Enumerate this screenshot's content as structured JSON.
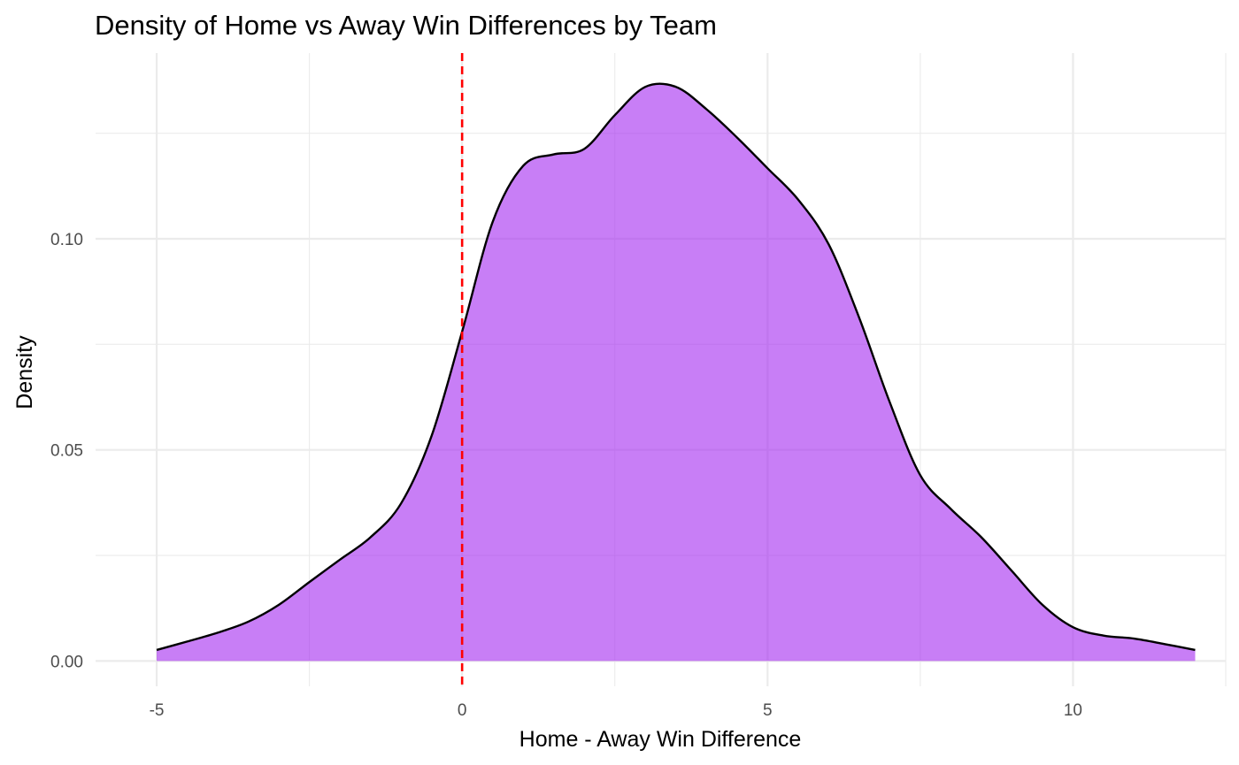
{
  "chart_data": {
    "type": "area",
    "title": "Density of Home vs Away Win Differences by Team",
    "xlabel": "Home - Away Win Difference",
    "ylabel": "Density",
    "xlim": [
      -6,
      12.5
    ],
    "ylim": [
      -0.006,
      0.144
    ],
    "x_ticks": [
      -5,
      0,
      5,
      10
    ],
    "x_tick_labels": [
      "-5",
      "0",
      "5",
      "10"
    ],
    "y_ticks": [
      0.0,
      0.05,
      0.1
    ],
    "y_tick_labels": [
      "0.00",
      "0.05",
      "0.10"
    ],
    "grid": true,
    "legend": "none",
    "fill_color": "#a020f0",
    "line_color": "#000000",
    "reference_line": {
      "x": 0,
      "color": "#ff0000",
      "style": "dashed"
    },
    "series": [
      {
        "x": [
          -5,
          -4.5,
          -4,
          -3.5,
          -3,
          -2.5,
          -2,
          -1.5,
          -1,
          -0.5,
          0,
          0.5,
          1,
          1.5,
          2,
          2.5,
          3,
          3.5,
          4,
          4.5,
          5,
          5.5,
          6,
          6.5,
          7,
          7.5,
          8,
          8.5,
          9,
          9.5,
          10,
          10.5,
          11,
          11.5,
          12
        ],
        "y": [
          0.0026,
          0.0046,
          0.0067,
          0.0093,
          0.0133,
          0.0187,
          0.024,
          0.0293,
          0.0373,
          0.0533,
          0.078,
          0.104,
          0.1173,
          0.12,
          0.1213,
          0.1293,
          0.136,
          0.136,
          0.1307,
          0.124,
          0.1167,
          0.1093,
          0.0987,
          0.0813,
          0.0613,
          0.044,
          0.036,
          0.0293,
          0.0213,
          0.0133,
          0.008,
          0.006,
          0.0053,
          0.004,
          0.0026
        ]
      }
    ]
  }
}
